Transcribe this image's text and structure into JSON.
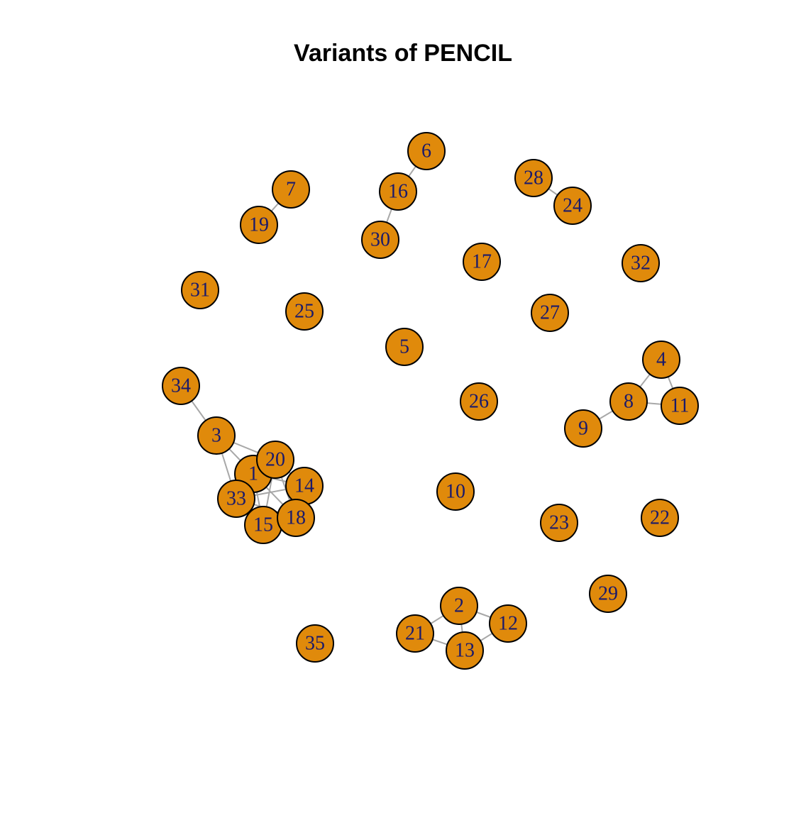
{
  "title": "Variants of PENCIL",
  "colors": {
    "node_fill": "#E08A0B",
    "node_stroke": "#000000",
    "label": "#1A1A6B",
    "edge": "#A8A8A8"
  },
  "nodes": [
    "1",
    "2",
    "3",
    "4",
    "5",
    "6",
    "7",
    "8",
    "9",
    "10",
    "11",
    "12",
    "13",
    "14",
    "15",
    "16",
    "17",
    "18",
    "19",
    "20",
    "21",
    "22",
    "23",
    "24",
    "25",
    "26",
    "27",
    "28",
    "29",
    "30",
    "31",
    "32",
    "33",
    "34",
    "35"
  ],
  "edges": [
    [
      "6",
      "16"
    ],
    [
      "16",
      "30"
    ],
    [
      "7",
      "19"
    ],
    [
      "28",
      "24"
    ],
    [
      "4",
      "8"
    ],
    [
      "4",
      "11"
    ],
    [
      "8",
      "11"
    ],
    [
      "8",
      "9"
    ],
    [
      "34",
      "3"
    ],
    [
      "3",
      "20"
    ],
    [
      "3",
      "1"
    ],
    [
      "3",
      "33"
    ],
    [
      "1",
      "20"
    ],
    [
      "1",
      "14"
    ],
    [
      "1",
      "33"
    ],
    [
      "1",
      "15"
    ],
    [
      "1",
      "18"
    ],
    [
      "20",
      "14"
    ],
    [
      "20",
      "33"
    ],
    [
      "20",
      "15"
    ],
    [
      "20",
      "18"
    ],
    [
      "14",
      "18"
    ],
    [
      "14",
      "33"
    ],
    [
      "33",
      "15"
    ],
    [
      "33",
      "18"
    ],
    [
      "15",
      "18"
    ],
    [
      "2",
      "21"
    ],
    [
      "2",
      "12"
    ],
    [
      "2",
      "13"
    ],
    [
      "21",
      "13"
    ],
    [
      "13",
      "12"
    ]
  ]
}
